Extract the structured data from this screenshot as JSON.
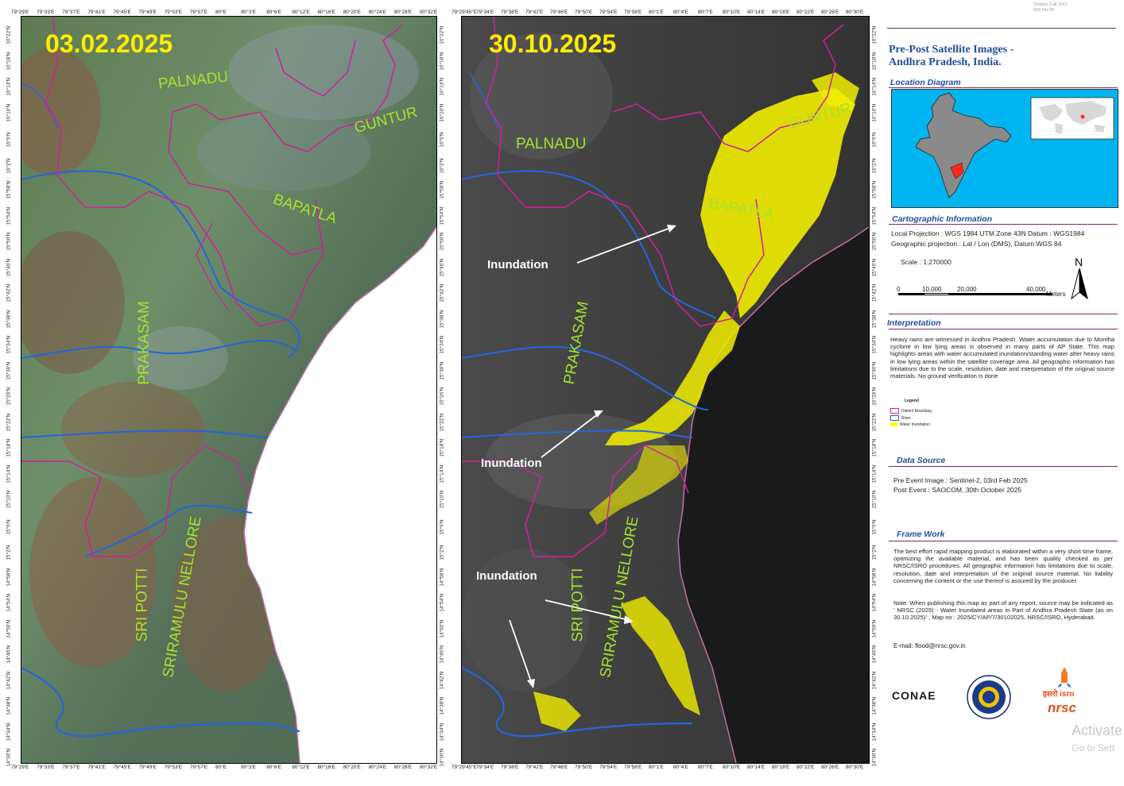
{
  "top_note": {
    "line1": "Charter Call 1141",
    "line2": "AOI No.08"
  },
  "left_map": {
    "date": "03.02.2025",
    "districts": {
      "palnadu": "PALNADU",
      "guntur": "GUNTUR",
      "bapatla": "BAPATLA",
      "prakasam": "PRAKASAM",
      "sri_potti": "SRI POTTI",
      "sriramulu_nellore": "SRIRAMULU NELLORE"
    },
    "top_ticks": [
      "79°29'E",
      "79°33'E",
      "79°37'E",
      "79°41'E",
      "79°45'E",
      "79°49'E",
      "79°53'E",
      "79°57'E",
      "80°E",
      "80°3'E",
      "80°6'E",
      "80°12'E",
      "80°16'E",
      "80°20'E",
      "80°24'E",
      "80°28'E",
      "80°32'E"
    ],
    "bottom_ticks": [
      "79°29'E",
      "79°33'E",
      "79°37'E",
      "79°41'E",
      "79°45'E",
      "79°49'E",
      "79°53'E",
      "79°57'E",
      "80°E",
      "80°3'E",
      "80°6'E",
      "80°12'E",
      "80°16'E",
      "80°20'E",
      "80°24'E",
      "80°28'E",
      "80°32'E"
    ],
    "left_ticks": [
      "16°22'N",
      "16°18'N",
      "16°14'N",
      "16°10'N",
      "16°6'N",
      "16°2'N",
      "15°58'N",
      "15°54'N",
      "15°50'N",
      "15°46'N",
      "15°42'N",
      "15°38'N",
      "15°34'N",
      "15°30'N",
      "15°26'N",
      "15°22'N",
      "15°18'N",
      "15°14'N",
      "15°10'N",
      "15°6'N",
      "15°2'N",
      "14°58'N",
      "14°54'N",
      "14°50'N",
      "14°46'N",
      "14°42'N",
      "14°38'N",
      "14°34'N",
      "14°30'N"
    ],
    "right_ticks": [
      "16°22'N",
      "16°18'N",
      "16°14'N",
      "16°10'N",
      "16°6'N",
      "16°2'N",
      "15°58'N",
      "15°54'N",
      "15°50'N",
      "15°46'N",
      "15°42'N",
      "15°38'N",
      "15°34'N",
      "15°30'N",
      "15°26'N",
      "15°22'N",
      "15°18'N",
      "15°14'N",
      "15°10'N",
      "15°6'N",
      "15°2'N",
      "14°58'N",
      "14°54'N",
      "14°50'N",
      "14°46'N",
      "14°42'N",
      "14°38'N",
      "14°34'N",
      "14°30'N"
    ]
  },
  "right_map": {
    "date": "30.10.2025",
    "districts": {
      "palnadu": "PALNADU",
      "guntur": "GUNTUR",
      "bapatla": "BAPATLA",
      "prakasam": "PRAKASAM",
      "sri_potti": "SRI POTTI",
      "sriramulu_nellore": "SRIRAMULU NELLORE"
    },
    "inundation_labels": [
      "Inundation",
      "Inundation",
      "Inundation"
    ],
    "top_ticks": [
      "79°29'45\"E",
      "79°34'E",
      "79°38'E",
      "79°42'E",
      "79°46'E",
      "79°50'E",
      "79°54'E",
      "79°58'E",
      "80°1'E",
      "80°4'E",
      "80°7'E",
      "80°10'E",
      "80°14'E",
      "80°18'E",
      "80°22'E",
      "80°26'E",
      "80°30'E"
    ],
    "bottom_ticks": [
      "79°29'45\"E",
      "79°34'E",
      "79°38'E",
      "79°42'E",
      "79°46'E",
      "79°50'E",
      "79°54'E",
      "79°58'E",
      "80°1'E",
      "80°4'E",
      "80°7'E",
      "80°10'E",
      "80°14'E",
      "80°18'E",
      "80°22'E",
      "80°26'E",
      "80°30'E"
    ],
    "right_ticks": [
      "16°22'N",
      "16°18'N",
      "16°14'N",
      "16°10'N",
      "16°6'N",
      "16°2'N",
      "15°58'N",
      "15°54'N",
      "15°50'N",
      "15°46'N",
      "15°42'N",
      "15°38'N",
      "15°34'N",
      "15°30'N",
      "15°26'N",
      "15°22'N",
      "15°18'N",
      "15°14'N",
      "15°10'N",
      "15°6'N",
      "15°2'N",
      "14°58'N",
      "14°54'N",
      "14°50'N",
      "14°46'N",
      "14°42'N",
      "14°38'N",
      "14°34'N",
      "14°30'N"
    ]
  },
  "panel": {
    "title": "Pre-Post Satellite Images - Andhra Pradesh, India.",
    "location_heading": "Location Diagram",
    "carto_heading": "Cartographic Information",
    "carto_line1": "Local Projection : WGS 1984 UTM Zone 43N Datum : WGS1984",
    "carto_line2": "Geographic projection : Lat / Lon (DMS), Datum:WGS 84",
    "scale": "Scale : 1:270000",
    "scale_ticks": [
      "0",
      "10,000",
      "20,000",
      "40,000"
    ],
    "scale_unit": "Meters",
    "north": "N",
    "interp_heading": "Interpretation",
    "interp_text": "Heavy rains are witnessed in Andhra Pradesh. Water accumulation due to Montha cyclone in low lying areas is observed in many parts of AP State. This map highlights areas with water accumulated inundation/standing water after heavy rains in low lying areas within the satellite coverage area. All geographic information has limitations due to the scale, resolution, date and interpretation of the original source materials. No ground verification is done",
    "legend_title": "Legend",
    "legend": [
      {
        "label": "District Boundary",
        "color": "#d0209a"
      },
      {
        "label": "River",
        "color": "#1f5fd0"
      },
      {
        "label": "Water Inundation",
        "color": "#ffff00"
      }
    ],
    "data_heading": "Data Source",
    "data_line1": "Pre Event Image : Sentinel-2, 03rd Feb 2025",
    "data_line2": "Post Event : SAOCOM, 30th October 2025",
    "frame_heading": "Frame Work",
    "frame_text": "The best effort rapid mapping product is elaborated within a very short time frame, optimizing the available material, and has been quality checked as per NRSC/ISRO procedures. All geographic information has limitations due to scale, resolution, date and interpretation of the original source material. No liability concerning the content or the use thereof is assured by the producer.",
    "frame_note": "Note: When publishing this map as part of any report, source may be indicated as ' NRSC (2025) - Water Inundated areas in Part of Andhra Pradesh State (as on 30.10.2025)' , Map no : 2025/CY/AP/7/30102025, NRSC/ISRO, Hyderabad.",
    "email": "E-mail:  flood@nrsc.gov.in",
    "logos": {
      "conae": "CONAE",
      "isro": "इसरो isro",
      "nrsc": "nrsc"
    }
  },
  "watermark": {
    "line1": "Activate",
    "line2": "Go to Sett"
  }
}
